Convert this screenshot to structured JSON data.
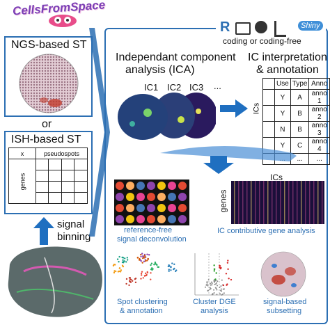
{
  "logo": {
    "text": "CellsFromSpace"
  },
  "left": {
    "ngs_title": "NGS-based ST",
    "or_label": "or",
    "ish_title": "ISH-based ST",
    "grid_x": "x",
    "grid_pseudospots": "pseudospots",
    "grid_genes": "genes",
    "signal_binning_1": "signal",
    "signal_binning_2": "binning"
  },
  "top_badges": {
    "coding_label": "coding or coding-free",
    "r_label": "R",
    "shiny_label": "Shiny"
  },
  "ica": {
    "title_1": "Independant component",
    "title_2": "analysis (ICA)",
    "ic_labels": [
      "IC1",
      "IC2",
      "IC3",
      "..."
    ]
  },
  "interp": {
    "title_1": "IC interpretation",
    "title_2": "& annotation",
    "side_label": "ICs",
    "headers": [
      "Use",
      "Type",
      "Anno"
    ],
    "rows": [
      [
        "Y",
        "A",
        "anno 1"
      ],
      [
        "Y",
        "B",
        "anno 2"
      ],
      [
        "N",
        "B",
        "anno 3"
      ],
      [
        "Y",
        "C",
        "anno 4"
      ],
      [
        "...",
        "...",
        "..."
      ]
    ]
  },
  "outputs": {
    "deconv_1": "reference-free",
    "deconv_2": "signal deconvolution",
    "heatmap_ics": "ICs",
    "heatmap_genes": "genes",
    "contrib": "IC contributive gene analysis",
    "cluster_1": "Spot clustering",
    "cluster_2": "& annotation",
    "dge_1": "Cluster DGE",
    "dge_2": "analysis",
    "subset_1": "signal-based",
    "subset_2": "subsetting"
  },
  "colors": {
    "accent": "#2c6fb3",
    "arrow": "#1f6fc0"
  }
}
